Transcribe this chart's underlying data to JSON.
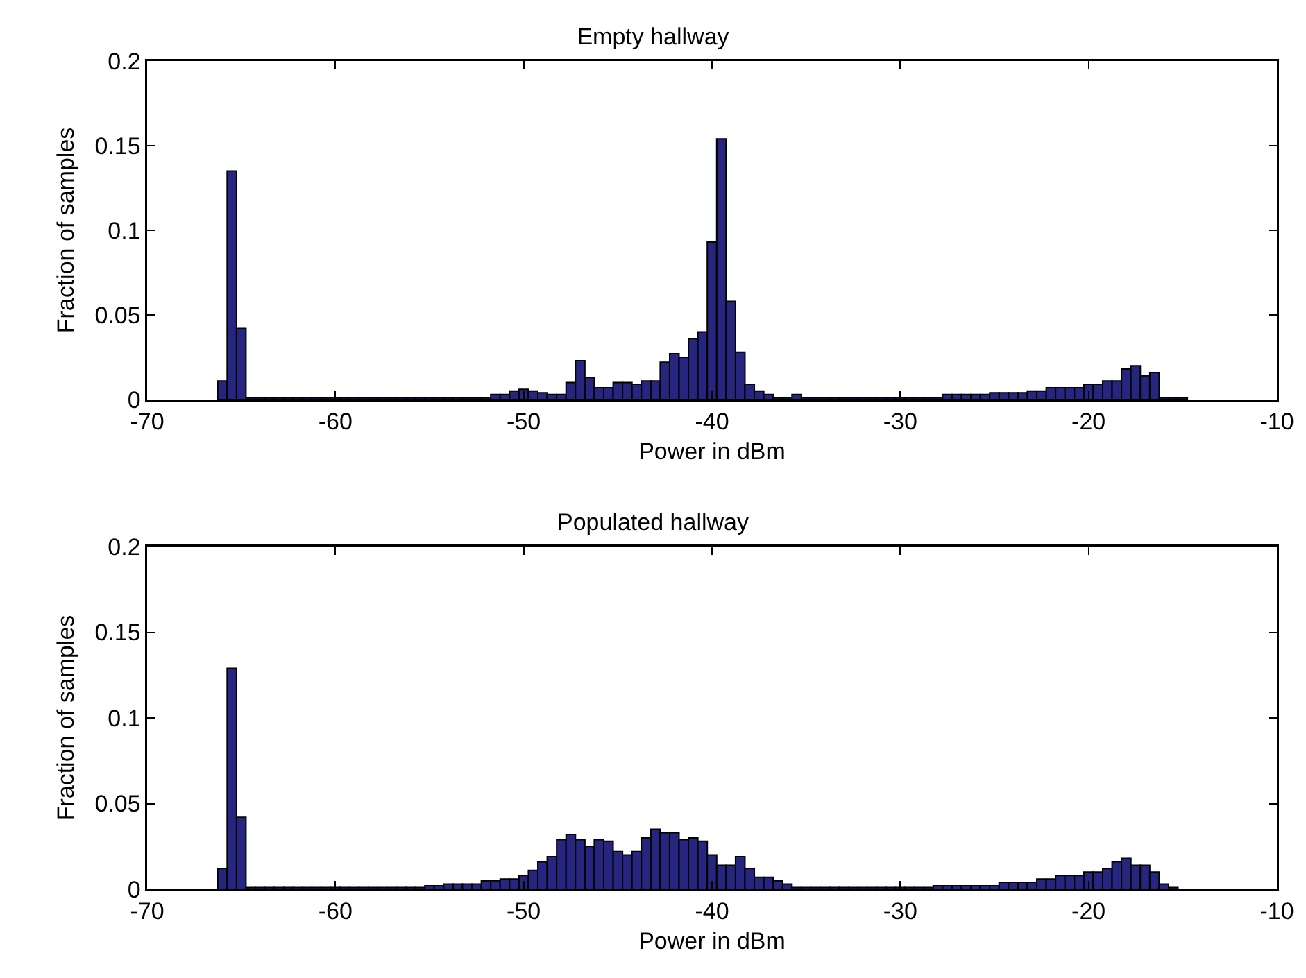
{
  "chart_data": [
    {
      "type": "histogram",
      "title": "Empty hallway",
      "xlabel": "Power in dBm",
      "ylabel": "Fraction of samples",
      "color": "#262680",
      "xlim": [
        -70,
        -10
      ],
      "xticks": [
        -70,
        -60,
        -50,
        -40,
        -30,
        -20,
        -10
      ],
      "ylim": [
        0,
        0.2
      ],
      "yticks": [
        0,
        0.05,
        0.1,
        0.15,
        0.2
      ],
      "grid": false,
      "legend": false,
      "bins": [
        -66.25,
        -65.75,
        -65.25,
        -64.75,
        -64.25,
        -63.75,
        -63.25,
        -62.75,
        -62.25,
        -61.75,
        -61.25,
        -60.75,
        -60.25,
        -59.75,
        -59.25,
        -58.75,
        -58.25,
        -57.75,
        -57.25,
        -56.75,
        -56.25,
        -55.75,
        -55.25,
        -54.75,
        -54.25,
        -53.75,
        -53.25,
        -52.75,
        -52.25,
        -51.75,
        -51.25,
        -50.75,
        -50.25,
        -49.75,
        -49.25,
        -48.75,
        -48.25,
        -47.75,
        -47.25,
        -46.75,
        -46.25,
        -45.75,
        -45.25,
        -44.75,
        -44.25,
        -43.75,
        -43.25,
        -42.75,
        -42.25,
        -41.75,
        -41.25,
        -40.75,
        -40.25,
        -39.75,
        -39.25,
        -38.75,
        -38.25,
        -37.75,
        -37.25,
        -36.75,
        -36.25,
        -35.75,
        -35.25,
        -34.75,
        -34.25,
        -33.75,
        -33.25,
        -32.75,
        -32.25,
        -31.75,
        -31.25,
        -30.75,
        -30.25,
        -29.75,
        -29.25,
        -28.75,
        -28.25,
        -27.75,
        -27.25,
        -26.75,
        -26.25,
        -25.75,
        -25.25,
        -24.75,
        -24.25,
        -23.75,
        -23.25,
        -22.75,
        -22.25,
        -21.75,
        -21.25,
        -20.75,
        -20.25,
        -19.75,
        -19.25,
        -18.75,
        -18.25,
        -17.75,
        -17.25,
        -16.75,
        -16.25,
        -15.75,
        -15.25,
        -14.75
      ],
      "values": [
        0.011,
        0.135,
        0.042,
        0.001,
        0.001,
        0.001,
        0.001,
        0.001,
        0.001,
        0.001,
        0.001,
        0.001,
        0.001,
        0.001,
        0.001,
        0.001,
        0.001,
        0.001,
        0.001,
        0.001,
        0.001,
        0.001,
        0.001,
        0.001,
        0.001,
        0.001,
        0.001,
        0.001,
        0.001,
        0.003,
        0.003,
        0.005,
        0.006,
        0.005,
        0.004,
        0.003,
        0.003,
        0.01,
        0.023,
        0.013,
        0.007,
        0.007,
        0.01,
        0.01,
        0.009,
        0.011,
        0.011,
        0.022,
        0.027,
        0.025,
        0.036,
        0.04,
        0.093,
        0.154,
        0.058,
        0.028,
        0.009,
        0.005,
        0.003,
        0.001,
        0.001,
        0.003,
        0.001,
        0.001,
        0.001,
        0.001,
        0.001,
        0.001,
        0.001,
        0.001,
        0.001,
        0.001,
        0.001,
        0.001,
        0.001,
        0.001,
        0.001,
        0.003,
        0.003,
        0.003,
        0.003,
        0.003,
        0.004,
        0.004,
        0.004,
        0.004,
        0.005,
        0.005,
        0.007,
        0.007,
        0.007,
        0.007,
        0.009,
        0.009,
        0.011,
        0.011,
        0.018,
        0.02,
        0.014,
        0.016,
        0.001,
        0.001,
        0.001
      ]
    },
    {
      "type": "histogram",
      "title": "Populated hallway",
      "xlabel": "Power in dBm",
      "ylabel": "Fraction of samples",
      "color": "#262680",
      "xlim": [
        -70,
        -10
      ],
      "xticks": [
        -70,
        -60,
        -50,
        -40,
        -30,
        -20,
        -10
      ],
      "ylim": [
        0,
        0.2
      ],
      "yticks": [
        0,
        0.05,
        0.1,
        0.15,
        0.2
      ],
      "grid": false,
      "legend": false,
      "bins": [
        -66.25,
        -65.75,
        -65.25,
        -64.75,
        -64.25,
        -63.75,
        -63.25,
        -62.75,
        -62.25,
        -61.75,
        -61.25,
        -60.75,
        -60.25,
        -59.75,
        -59.25,
        -58.75,
        -58.25,
        -57.75,
        -57.25,
        -56.75,
        -56.25,
        -55.75,
        -55.25,
        -54.75,
        -54.25,
        -53.75,
        -53.25,
        -52.75,
        -52.25,
        -51.75,
        -51.25,
        -50.75,
        -50.25,
        -49.75,
        -49.25,
        -48.75,
        -48.25,
        -47.75,
        -47.25,
        -46.75,
        -46.25,
        -45.75,
        -45.25,
        -44.75,
        -44.25,
        -43.75,
        -43.25,
        -42.75,
        -42.25,
        -41.75,
        -41.25,
        -40.75,
        -40.25,
        -39.75,
        -39.25,
        -38.75,
        -38.25,
        -37.75,
        -37.25,
        -36.75,
        -36.25,
        -35.75,
        -35.25,
        -34.75,
        -34.25,
        -33.75,
        -33.25,
        -32.75,
        -32.25,
        -31.75,
        -31.25,
        -30.75,
        -30.25,
        -29.75,
        -29.25,
        -28.75,
        -28.25,
        -27.75,
        -27.25,
        -26.75,
        -26.25,
        -25.75,
        -25.25,
        -24.75,
        -24.25,
        -23.75,
        -23.25,
        -22.75,
        -22.25,
        -21.75,
        -21.25,
        -20.75,
        -20.25,
        -19.75,
        -19.25,
        -18.75,
        -18.25,
        -17.75,
        -17.25,
        -16.75,
        -16.25,
        -15.75,
        -15.25
      ],
      "values": [
        0.012,
        0.129,
        0.042,
        0.001,
        0.001,
        0.001,
        0.001,
        0.001,
        0.001,
        0.001,
        0.001,
        0.001,
        0.001,
        0.001,
        0.001,
        0.001,
        0.001,
        0.001,
        0.001,
        0.001,
        0.001,
        0.001,
        0.002,
        0.002,
        0.003,
        0.003,
        0.003,
        0.003,
        0.005,
        0.005,
        0.006,
        0.006,
        0.008,
        0.011,
        0.016,
        0.019,
        0.029,
        0.032,
        0.029,
        0.025,
        0.029,
        0.028,
        0.022,
        0.02,
        0.022,
        0.03,
        0.035,
        0.033,
        0.033,
        0.029,
        0.03,
        0.028,
        0.02,
        0.014,
        0.014,
        0.019,
        0.012,
        0.007,
        0.007,
        0.005,
        0.003,
        0.001,
        0.001,
        0.001,
        0.001,
        0.001,
        0.001,
        0.001,
        0.001,
        0.001,
        0.001,
        0.001,
        0.001,
        0.001,
        0.001,
        0.001,
        0.002,
        0.002,
        0.002,
        0.002,
        0.002,
        0.002,
        0.002,
        0.004,
        0.004,
        0.004,
        0.004,
        0.006,
        0.006,
        0.008,
        0.008,
        0.008,
        0.01,
        0.01,
        0.012,
        0.016,
        0.018,
        0.014,
        0.014,
        0.01,
        0.003,
        0.001
      ]
    }
  ]
}
